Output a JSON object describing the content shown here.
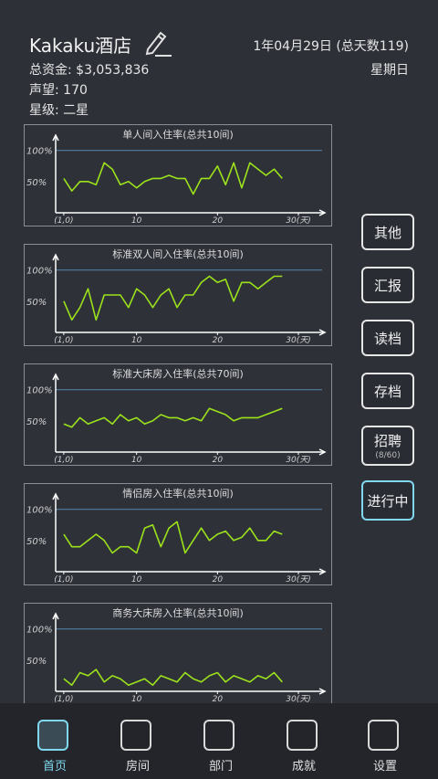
{
  "header": {
    "hotel_name": "Kakaku酒店",
    "funds": "总资金: $3,053,836",
    "reputation": "声望: 170",
    "rating": "星级: 二星",
    "date": "1年04月29日 (总天数119)",
    "weekday": "星期日"
  },
  "side_buttons": [
    {
      "label": "其他"
    },
    {
      "label": "汇报"
    },
    {
      "label": "读档"
    },
    {
      "label": "存档"
    },
    {
      "label": "招聘",
      "sub": "(8/60)"
    },
    {
      "label": "进行中"
    }
  ],
  "tabs": [
    {
      "label": "首页"
    },
    {
      "label": "房间"
    },
    {
      "label": "部门"
    },
    {
      "label": "成就"
    },
    {
      "label": "设置"
    }
  ],
  "colors": {
    "line": "#9be21b",
    "ref": "#4f7da3",
    "axis": "#ffffff",
    "accent": "#7fd8ee"
  },
  "chart_data": [
    {
      "type": "line",
      "title": "单人间入住率(总共10间)",
      "yticks": [
        "100%",
        "50%"
      ],
      "xticks": [
        "(1,0)",
        "10",
        "20",
        "30(天)"
      ],
      "ylim": [
        0,
        120
      ],
      "xlim": [
        0,
        30
      ],
      "reference_line": 100,
      "x": [
        1,
        2,
        3,
        4,
        5,
        6,
        7,
        8,
        9,
        10,
        11,
        12,
        13,
        14,
        15,
        16,
        17,
        18,
        19,
        20,
        21,
        22,
        23,
        24,
        25,
        26,
        27,
        28
      ],
      "values": [
        55,
        35,
        50,
        50,
        45,
        80,
        70,
        45,
        50,
        40,
        50,
        55,
        55,
        60,
        55,
        55,
        30,
        55,
        55,
        75,
        45,
        80,
        40,
        80,
        70,
        60,
        70,
        55
      ]
    },
    {
      "type": "line",
      "title": "标准双人间入住率(总共10间)",
      "yticks": [
        "100%",
        "50%"
      ],
      "xticks": [
        "(1,0)",
        "10",
        "20",
        "30(天)"
      ],
      "ylim": [
        0,
        120
      ],
      "xlim": [
        0,
        30
      ],
      "reference_line": 100,
      "x": [
        1,
        2,
        3,
        4,
        5,
        6,
        7,
        8,
        9,
        10,
        11,
        12,
        13,
        14,
        15,
        16,
        17,
        18,
        19,
        20,
        21,
        22,
        23,
        24,
        25,
        26,
        27,
        28
      ],
      "values": [
        50,
        20,
        40,
        70,
        20,
        60,
        60,
        60,
        40,
        70,
        60,
        40,
        60,
        70,
        40,
        60,
        60,
        80,
        90,
        80,
        85,
        50,
        80,
        80,
        70,
        80,
        90,
        90
      ]
    },
    {
      "type": "line",
      "title": "标准大床房入住率(总共70间)",
      "yticks": [
        "100%",
        "50%"
      ],
      "xticks": [
        "(1,0)",
        "10",
        "20",
        "30(天)"
      ],
      "ylim": [
        0,
        120
      ],
      "xlim": [
        0,
        30
      ],
      "reference_line": 100,
      "x": [
        1,
        2,
        3,
        4,
        5,
        6,
        7,
        8,
        9,
        10,
        11,
        12,
        13,
        14,
        15,
        16,
        17,
        18,
        19,
        20,
        21,
        22,
        23,
        24,
        25,
        26,
        27,
        28
      ],
      "values": [
        45,
        40,
        55,
        45,
        50,
        55,
        45,
        60,
        50,
        55,
        45,
        50,
        60,
        55,
        55,
        50,
        55,
        50,
        70,
        65,
        60,
        50,
        55,
        55,
        55,
        60,
        65,
        70
      ]
    },
    {
      "type": "line",
      "title": "情侣房入住率(总共10间)",
      "yticks": [
        "100%",
        "50%"
      ],
      "xticks": [
        "(1,0)",
        "10",
        "20",
        "30(天)"
      ],
      "ylim": [
        0,
        120
      ],
      "xlim": [
        0,
        30
      ],
      "reference_line": 100,
      "x": [
        1,
        2,
        3,
        4,
        5,
        6,
        7,
        8,
        9,
        10,
        11,
        12,
        13,
        14,
        15,
        16,
        17,
        18,
        19,
        20,
        21,
        22,
        23,
        24,
        25,
        26,
        27,
        28
      ],
      "values": [
        60,
        40,
        40,
        50,
        60,
        50,
        30,
        40,
        40,
        30,
        70,
        75,
        40,
        70,
        80,
        30,
        50,
        70,
        50,
        60,
        65,
        50,
        55,
        70,
        50,
        50,
        65,
        60
      ]
    },
    {
      "type": "line",
      "title": "商务大床房入住率(总共10间)",
      "yticks": [
        "100%",
        "50%"
      ],
      "xticks": [
        "(1,0)",
        "10",
        "20",
        "30(天)"
      ],
      "ylim": [
        0,
        120
      ],
      "xlim": [
        0,
        30
      ],
      "reference_line": 100,
      "x": [
        1,
        2,
        3,
        4,
        5,
        6,
        7,
        8,
        9,
        10,
        11,
        12,
        13,
        14,
        15,
        16,
        17,
        18,
        19,
        20,
        21,
        22,
        23,
        24,
        25,
        26,
        27,
        28
      ],
      "values": [
        20,
        10,
        30,
        25,
        35,
        15,
        25,
        20,
        10,
        15,
        20,
        10,
        25,
        20,
        15,
        30,
        20,
        15,
        25,
        30,
        15,
        25,
        20,
        15,
        25,
        20,
        30,
        15
      ]
    }
  ]
}
